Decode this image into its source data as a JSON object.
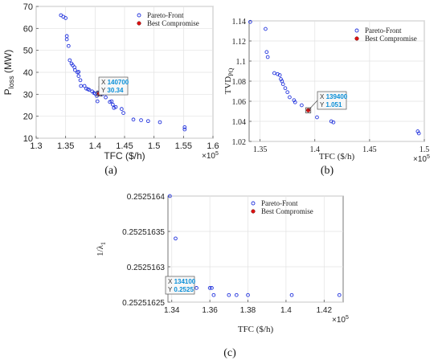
{
  "chart_data": [
    {
      "type": "scatter",
      "panel_label": "(a)",
      "xlabel": "TFC ($/h)",
      "ylabel_main": "P",
      "ylabel_sub": "loss",
      "ylabel_tail": " (MW)",
      "x_multiplier": "×10",
      "x_multiplier_exp": "5",
      "xlim": [
        1.3,
        1.6
      ],
      "ylim": [
        10,
        70
      ],
      "xticks": [
        1.3,
        1.35,
        1.4,
        1.45,
        1.5,
        1.55,
        1.6
      ],
      "yticks": [
        10,
        20,
        30,
        40,
        50,
        60,
        70
      ],
      "legend": [
        "Pareto-Front",
        "Best Compromise"
      ],
      "legend_position": "top-right",
      "datatip": {
        "x_label": "X",
        "x_text": "140700",
        "y_label": "Y",
        "y_text": "30.34"
      },
      "series": [
        {
          "name": "Pareto-Front",
          "color": "#2233dd",
          "points": [
            [
              1.342,
              66
            ],
            [
              1.346,
              65.3
            ],
            [
              1.35,
              64.7
            ],
            [
              1.352,
              56.5
            ],
            [
              1.352,
              55
            ],
            [
              1.355,
              52
            ],
            [
              1.357,
              45.5
            ],
            [
              1.36,
              44
            ],
            [
              1.362,
              43.2
            ],
            [
              1.365,
              42.3
            ],
            [
              1.366,
              41
            ],
            [
              1.37,
              40
            ],
            [
              1.372,
              40.2
            ],
            [
              1.372,
              38.3
            ],
            [
              1.375,
              36.4
            ],
            [
              1.376,
              33.8
            ],
            [
              1.382,
              33.8
            ],
            [
              1.385,
              32.6
            ],
            [
              1.388,
              32.3
            ],
            [
              1.39,
              32
            ],
            [
              1.395,
              31.3
            ],
            [
              1.398,
              30.6
            ],
            [
              1.4,
              30.3
            ],
            [
              1.403,
              29.2
            ],
            [
              1.404,
              26.8
            ],
            [
              1.405,
              30.5
            ],
            [
              1.412,
              30
            ],
            [
              1.418,
              28.6
            ],
            [
              1.425,
              26.5
            ],
            [
              1.428,
              26.8
            ],
            [
              1.43,
              25.3
            ],
            [
              1.432,
              23.8
            ],
            [
              1.435,
              24.2
            ],
            [
              1.445,
              23.3
            ],
            [
              1.448,
              21.5
            ],
            [
              1.465,
              18.5
            ],
            [
              1.478,
              18.2
            ],
            [
              1.49,
              17.8
            ],
            [
              1.51,
              17.3
            ],
            [
              1.552,
              15
            ],
            [
              1.552,
              14
            ]
          ]
        },
        {
          "name": "Best Compromise",
          "color": "#dd1111",
          "points": [
            [
              1.407,
              30.34
            ]
          ]
        }
      ]
    },
    {
      "type": "scatter",
      "panel_label": "(b)",
      "xlabel": "TFC ($/h)",
      "ylabel_main": "TVD",
      "ylabel_sub": "PQ",
      "ylabel_tail": "",
      "x_multiplier": "×10",
      "x_multiplier_exp": "5",
      "xlim": [
        1.34,
        1.5
      ],
      "ylim": [
        1.02,
        1.14
      ],
      "xticks": [
        1.35,
        1.4,
        1.45,
        1.5
      ],
      "yticks": [
        1.02,
        1.04,
        1.06,
        1.08,
        1.1,
        1.12,
        1.14
      ],
      "legend": [
        "Pareto-Front",
        "Best Compromise"
      ],
      "legend_position": "top-right",
      "datatip": {
        "x_label": "X",
        "x_text": "139400",
        "y_label": "Y",
        "y_text": "1.051"
      },
      "series": [
        {
          "name": "Pareto-Front",
          "color": "#2233dd",
          "points": [
            [
              1.341,
              1.139
            ],
            [
              1.355,
              1.132
            ],
            [
              1.356,
              1.109
            ],
            [
              1.357,
              1.104
            ],
            [
              1.363,
              1.088
            ],
            [
              1.366,
              1.087
            ],
            [
              1.368,
              1.086
            ],
            [
              1.369,
              1.082
            ],
            [
              1.37,
              1.08
            ],
            [
              1.371,
              1.077
            ],
            [
              1.373,
              1.073
            ],
            [
              1.375,
              1.069
            ],
            [
              1.377,
              1.064
            ],
            [
              1.381,
              1.061
            ],
            [
              1.382,
              1.059
            ],
            [
              1.388,
              1.056
            ],
            [
              1.402,
              1.044
            ],
            [
              1.415,
              1.04
            ],
            [
              1.417,
              1.039
            ],
            [
              1.494,
              1.03
            ],
            [
              1.495,
              1.028
            ]
          ]
        },
        {
          "name": "Best Compromise",
          "color": "#dd1111",
          "points": [
            [
              1.394,
              1.051
            ]
          ]
        }
      ]
    },
    {
      "type": "scatter",
      "panel_label": "(c)",
      "xlabel": "TFC ($/h)",
      "ylabel_main": "1/λ",
      "ylabel_sub": "1",
      "ylabel_tail": "",
      "x_multiplier": "×10",
      "x_multiplier_exp": "5",
      "xlim": [
        1.338,
        1.43
      ],
      "ylim": [
        0.25251625,
        0.2525164
      ],
      "xticks": [
        1.34,
        1.36,
        1.38,
        1.4,
        1.42
      ],
      "yticks": [
        0.25251625,
        0.2525163,
        0.25251635,
        0.2525164
      ],
      "ytick_labels": [
        "0.25251625",
        "0.2525163",
        "0.25251635",
        "0.2525164"
      ],
      "legend": [
        "Pareto-Front",
        "Best Compromise"
      ],
      "legend_position": "top-right",
      "datatip": {
        "x_label": "X",
        "x_text": "134100",
        "y_label": "Y",
        "y_text": "0.2525"
      },
      "series": [
        {
          "name": "Pareto-Front",
          "color": "#2233dd",
          "points": [
            [
              1.339,
              0.2525164
            ],
            [
              1.342,
              0.25251634
            ],
            [
              1.353,
              0.25251627
            ],
            [
              1.36,
              0.25251627
            ],
            [
              1.361,
              0.25251627
            ],
            [
              1.362,
              0.25251626
            ],
            [
              1.37,
              0.25251626
            ],
            [
              1.374,
              0.25251626
            ],
            [
              1.38,
              0.25251626
            ],
            [
              1.403,
              0.25251626
            ],
            [
              1.428,
              0.25251626
            ]
          ]
        },
        {
          "name": "Best Compromise",
          "color": "#dd1111",
          "points": [
            [
              1.341,
              0.252516272
            ]
          ]
        }
      ]
    }
  ]
}
